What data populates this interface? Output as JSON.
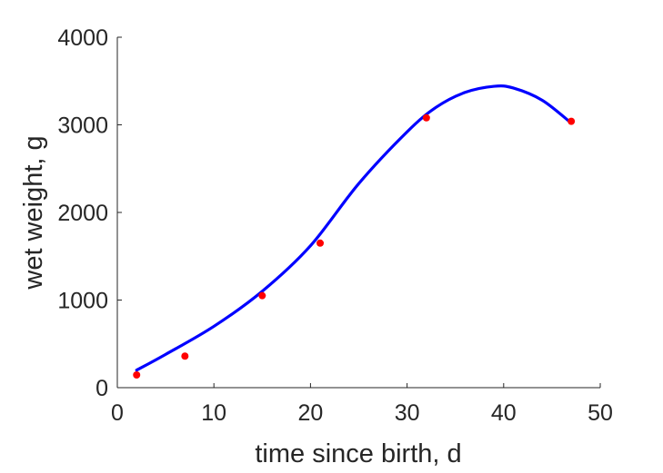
{
  "chart_data": {
    "type": "scatter",
    "title": "",
    "xlabel": "time since birth, d",
    "ylabel": "wet weight, g",
    "xlim": [
      0,
      50
    ],
    "ylim": [
      0,
      4000
    ],
    "x_ticks": [
      0,
      10,
      20,
      30,
      40,
      50
    ],
    "y_ticks": [
      0,
      1000,
      2000,
      3000,
      4000
    ],
    "x_tick_labels": [
      "0",
      "10",
      "20",
      "30",
      "40",
      "50"
    ],
    "y_tick_labels": [
      "0",
      "1000",
      "2000",
      "3000",
      "4000"
    ],
    "grid": false,
    "series": [
      {
        "kind": "scatter",
        "color": "#ff0000",
        "x": [
          2,
          7,
          15,
          21,
          32,
          47
        ],
        "y": [
          145,
          360,
          1050,
          1650,
          3080,
          3040
        ]
      },
      {
        "kind": "line",
        "color": "#0000ff",
        "x": [
          2,
          5,
          10,
          15,
          20,
          25,
          30,
          33,
          36,
          39,
          41,
          44,
          47
        ],
        "y": [
          200,
          380,
          700,
          1100,
          1620,
          2330,
          2920,
          3200,
          3370,
          3440,
          3420,
          3280,
          3020
        ]
      }
    ]
  }
}
